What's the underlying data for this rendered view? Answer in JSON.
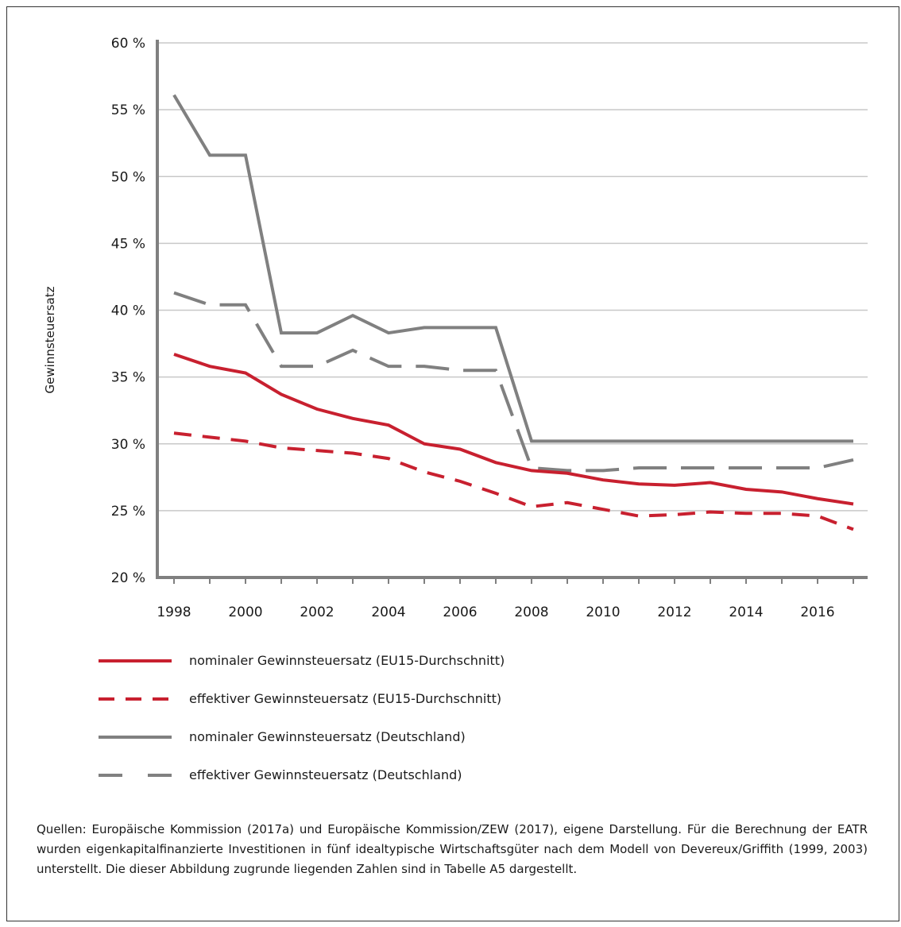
{
  "chart_data": {
    "type": "line",
    "ylabel": "Gewinnsteuersatz",
    "ylim": [
      20,
      60
    ],
    "y_ticks": [
      "20 %",
      "25 %",
      "30 %",
      "35 %",
      "40 %",
      "45 %",
      "50 %",
      "55 %",
      "60 %"
    ],
    "x_ticks": [
      "1998",
      "2000",
      "2002",
      "2004",
      "2006",
      "2008",
      "2010",
      "2012",
      "2014",
      "2016"
    ],
    "grid": "horizontal",
    "x": [
      1998,
      1999,
      2000,
      2001,
      2002,
      2003,
      2004,
      2005,
      2006,
      2007,
      2008,
      2009,
      2010,
      2011,
      2012,
      2013,
      2014,
      2015,
      2016,
      2017
    ],
    "series": [
      {
        "name": "nominaler Gewinnsteuersatz (EU15-Durchschnitt)",
        "color": "#c8202f",
        "dash": "solid",
        "values": [
          36.7,
          35.8,
          35.3,
          33.7,
          32.6,
          31.9,
          31.4,
          30.0,
          29.6,
          28.6,
          28.0,
          27.8,
          27.3,
          27.0,
          26.9,
          27.1,
          26.6,
          26.4,
          25.9,
          25.5
        ]
      },
      {
        "name": "effektiver Gewinnsteuersatz (EU15-Durchschnitt)",
        "color": "#c8202f",
        "dash": "dashed",
        "values": [
          30.8,
          30.5,
          30.2,
          29.7,
          29.5,
          29.3,
          28.9,
          27.9,
          27.2,
          26.3,
          25.3,
          25.6,
          25.1,
          24.6,
          24.7,
          24.9,
          24.8,
          24.8,
          24.6,
          23.6
        ]
      },
      {
        "name": "nominaler Gewinnsteuersatz (Deutschland)",
        "color": "#808080",
        "dash": "solid",
        "values": [
          56.1,
          51.6,
          51.6,
          38.3,
          38.3,
          39.6,
          38.3,
          38.7,
          38.7,
          38.7,
          30.2,
          30.2,
          30.2,
          30.2,
          30.2,
          30.2,
          30.2,
          30.2,
          30.2,
          30.2
        ]
      },
      {
        "name": "effektiver Gewinnsteuersatz (Deutschland)",
        "color": "#808080",
        "dash": "longdash",
        "values": [
          41.3,
          40.4,
          40.4,
          35.8,
          35.8,
          37.0,
          35.8,
          35.8,
          35.5,
          35.5,
          28.2,
          28.0,
          28.0,
          28.2,
          28.2,
          28.2,
          28.2,
          28.2,
          28.2,
          28.8
        ]
      }
    ],
    "legend_position": "bottom"
  },
  "source_text": "Quellen: Europäische Kommission (2017a) und Europäische Kommission/ZEW (2017), eigene Darstellung. Für die Berechnung der EATR wurden eigenkapitalfinanzierte Investitionen in fünf idealtypische Wirtschaftsgüter nach dem Modell von Devereux/Griffith (1999, 2003) unterstellt. Die dieser Abbildung zugrunde liegenden Zahlen sind in Tabelle A5 dargestellt."
}
